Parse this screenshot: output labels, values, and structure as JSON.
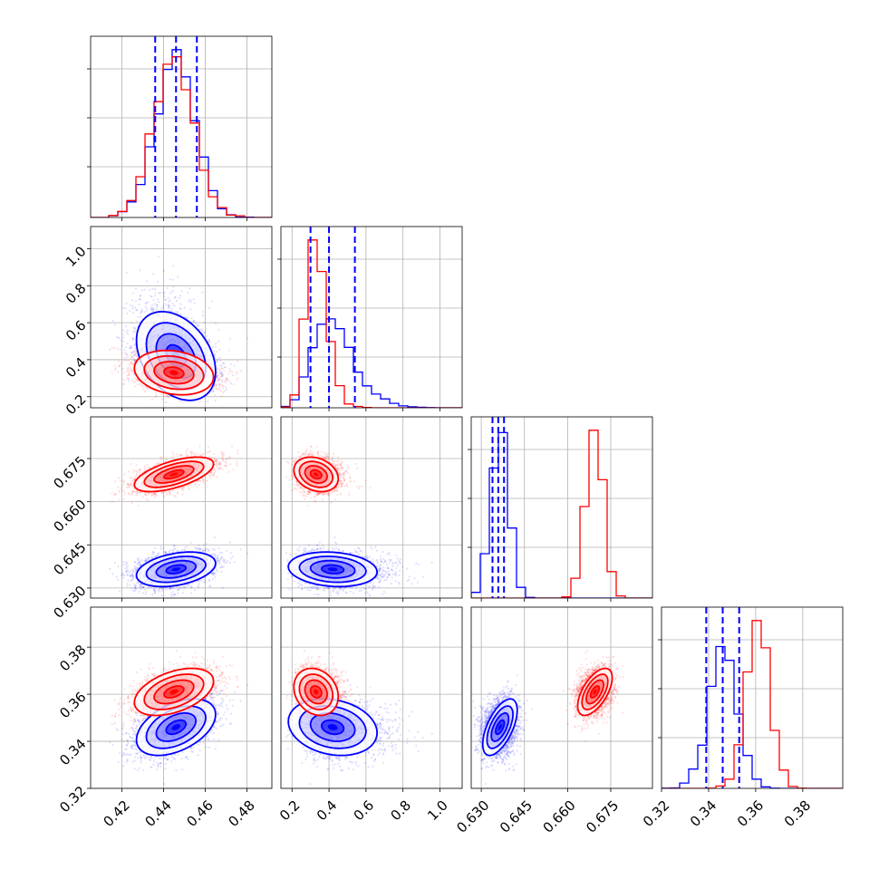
{
  "colors": {
    "blue": "#0000ff",
    "red": "#ff0000",
    "grid": "#b0b0b0"
  },
  "chart_data": {
    "type": "corner",
    "grid": true,
    "parameters": [
      {
        "lim": [
          0.405,
          0.492
        ],
        "ticks": [
          0.42,
          0.44,
          0.46,
          0.48
        ],
        "labels": [
          "0.42",
          "0.44",
          "0.46",
          "0.48"
        ]
      },
      {
        "lim": [
          0.14,
          1.12
        ],
        "ticks": [
          0.2,
          0.4,
          0.6,
          0.8,
          1.0
        ],
        "labels": [
          "0.2",
          "0.4",
          "0.6",
          "0.8",
          "1.0"
        ]
      },
      {
        "lim": [
          0.6265,
          0.6895
        ],
        "ticks": [
          0.63,
          0.645,
          0.66,
          0.675
        ],
        "labels": [
          "0.630",
          "0.645",
          "0.660",
          "0.675"
        ]
      },
      {
        "lim": [
          0.32,
          0.397
        ],
        "ticks": [
          0.32,
          0.34,
          0.36,
          0.38
        ],
        "labels": [
          "0.32",
          "0.34",
          "0.36",
          "0.38"
        ]
      }
    ],
    "series": [
      {
        "color": "#0000ff",
        "means": [
          0.446,
          0.42,
          0.6365,
          0.346
        ],
        "sds": [
          0.0095,
          0.12,
          0.003,
          0.006
        ],
        "corr": [
          [
            1,
            -0.35,
            0.35,
            0.45
          ],
          [
            -0.35,
            1,
            -0.15,
            -0.2
          ],
          [
            0.35,
            -0.15,
            1,
            0.6
          ],
          [
            0.45,
            -0.2,
            0.6,
            1
          ]
        ],
        "quantiles": [
          [
            0.436,
            0.446,
            0.456
          ],
          [
            0.3,
            0.4,
            0.54
          ],
          [
            0.6339,
            0.6359,
            0.6379
          ],
          [
            0.339,
            0.346,
            0.353
          ]
        ]
      },
      {
        "color": "#ff0000",
        "means": [
          0.445,
          0.33,
          0.6695,
          0.361
        ],
        "sds": [
          0.0095,
          0.06,
          0.003,
          0.005
        ],
        "corr": [
          [
            1,
            -0.2,
            0.6,
            0.45
          ],
          [
            -0.2,
            1,
            -0.25,
            -0.2
          ],
          [
            0.6,
            -0.25,
            1,
            0.6
          ],
          [
            0.45,
            -0.2,
            0.6,
            1
          ]
        ]
      }
    ]
  }
}
